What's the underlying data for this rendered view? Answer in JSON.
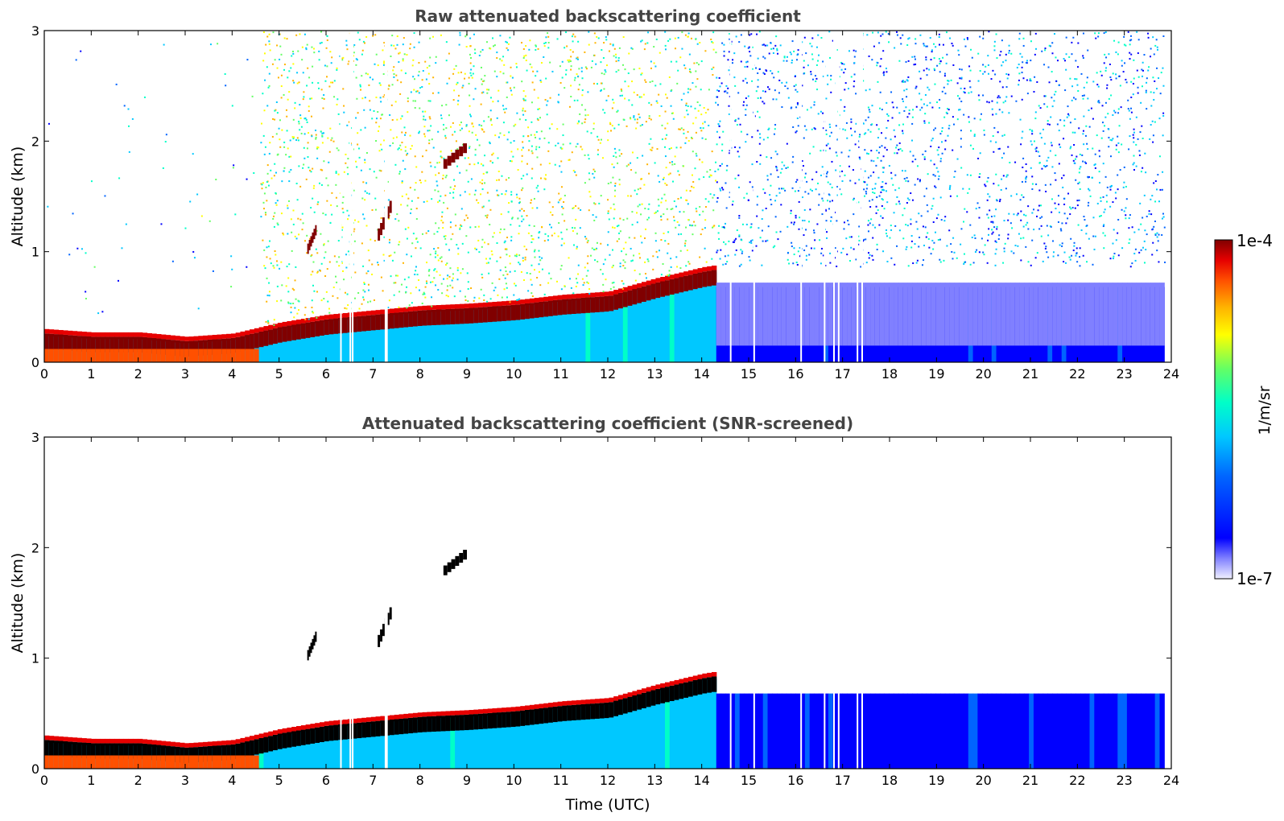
{
  "chart_data": [
    {
      "type": "heatmap",
      "title": "Raw attenuated backscattering coefficient",
      "xlabel": "",
      "ylabel": "Altitude (km)",
      "xlim": [
        0,
        24
      ],
      "ylim": [
        0,
        3
      ],
      "x_ticks": [
        "0",
        "1",
        "2",
        "3",
        "4",
        "5",
        "6",
        "7",
        "8",
        "9",
        "10",
        "11",
        "12",
        "13",
        "14",
        "15",
        "16",
        "17",
        "18",
        "19",
        "20",
        "21",
        "22",
        "23",
        "24"
      ],
      "y_ticks": [
        "0",
        "1",
        "2",
        "3"
      ],
      "data_end_time": 23.85,
      "layer_top_km": {
        "time": [
          0,
          1,
          2,
          3,
          4,
          5,
          6,
          7,
          8,
          9,
          10,
          11,
          12,
          13,
          14,
          14.3
        ],
        "altitude": [
          0.24,
          0.21,
          0.21,
          0.17,
          0.2,
          0.3,
          0.37,
          0.41,
          0.45,
          0.47,
          0.5,
          0.55,
          0.58,
          0.7,
          0.8,
          0.82
        ]
      },
      "elevated_features_km": [
        {
          "time_start": 5.6,
          "time_end": 5.8,
          "altitude_bottom": 0.98,
          "altitude_top": 1.18
        },
        {
          "time_start": 7.1,
          "time_end": 7.4,
          "altitude_bottom": 1.1,
          "altitude_top": 1.4
        },
        {
          "time_start": 8.5,
          "time_end": 9.0,
          "altitude_bottom": 1.75,
          "altitude_top": 1.92
        }
      ],
      "data_gaps_time": [
        6.3,
        6.5,
        6.55,
        7.25,
        7.28,
        14.6,
        15.1,
        16.1,
        16.6,
        16.8,
        16.9,
        17.3,
        17.4
      ]
    },
    {
      "type": "heatmap",
      "title": "Attenuated backscattering coefficient (SNR-screened)",
      "xlabel": "Time (UTC)",
      "ylabel": "Altitude (km)",
      "xlim": [
        0,
        24
      ],
      "ylim": [
        0,
        3
      ],
      "x_ticks": [
        "0",
        "1",
        "2",
        "3",
        "4",
        "5",
        "6",
        "7",
        "8",
        "9",
        "10",
        "11",
        "12",
        "13",
        "14",
        "15",
        "16",
        "17",
        "18",
        "19",
        "20",
        "21",
        "22",
        "23",
        "24"
      ],
      "y_ticks": [
        "0",
        "1",
        "2",
        "3"
      ],
      "data_end_time": 23.85,
      "screened_top_km_after_14h": 0.68
    }
  ],
  "colorbar": {
    "label": "1/m/sr",
    "max_label": "1e-4",
    "min_label": "1e-7",
    "colormap": [
      "#f0f0ff",
      "#8080ff",
      "#0000ff",
      "#0064ff",
      "#00c8ff",
      "#00ffc8",
      "#64ff64",
      "#ffff00",
      "#ffb400",
      "#ff5000",
      "#e60000",
      "#800000"
    ]
  }
}
